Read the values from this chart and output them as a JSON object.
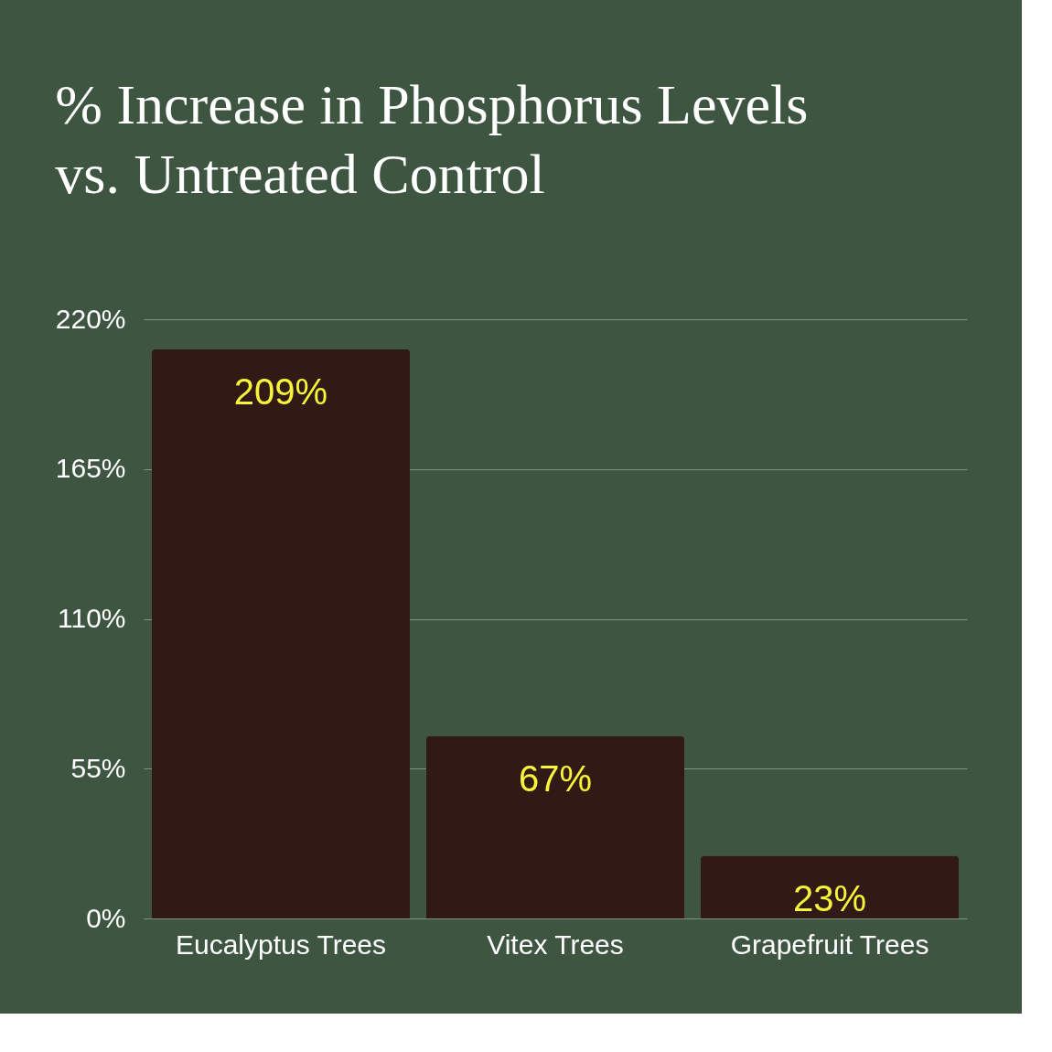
{
  "chart_data": {
    "type": "bar",
    "title": "% Increase in Phosphorus Levels\nvs. Untreated Control",
    "categories": [
      "Eucalyptus Trees",
      "Vitex Trees",
      "Grapefruit Trees"
    ],
    "values": [
      209,
      67,
      23
    ],
    "color": "#311a15",
    "value_labels": [
      "209%",
      "67%",
      "23%"
    ],
    "ylim": [
      0,
      220
    ],
    "yticks": [
      {
        "value": 0,
        "label": "0%"
      },
      {
        "value": 55,
        "label": "55%"
      },
      {
        "value": 110,
        "label": "110%"
      },
      {
        "value": 165,
        "label": "165%"
      },
      {
        "value": 220,
        "label": "220%"
      }
    ],
    "grid": "y"
  }
}
